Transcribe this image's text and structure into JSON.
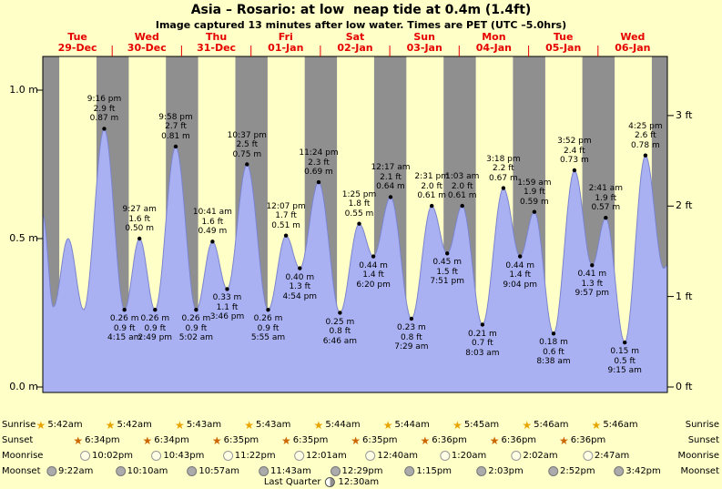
{
  "title": "Asia – Rosario: at low  neap tide at 0.4m (1.4ft)",
  "subtitle": "Image captured 13 minutes after low water. Times are PET (UTC –5.0hrs)",
  "colors": {
    "background": "#ffffc8",
    "day_band": "#ffffc8",
    "night_band": "#8f8f8f",
    "tide_fill": "#a9b1f2",
    "tide_line": "#7b84cf",
    "day_label": "#e60000",
    "annotation": "#000000"
  },
  "chart_data": {
    "type": "area",
    "title": "Asia – Rosario: at low  neap tide at 0.4m (1.4ft)",
    "subtitle": "Image captured 13 minutes after low water. Times are PET (UTC –5.0hrs)",
    "x_unit": "days",
    "num_days": 9,
    "ylim_m": [
      0,
      1.13
    ],
    "y_axis_left": {
      "unit": "m",
      "tick_labels": [
        "1.0 m",
        "0.5 m",
        "0.0 m"
      ],
      "tick_values": [
        1.0,
        0.5,
        0.0
      ]
    },
    "y_axis_right": {
      "unit": "ft",
      "tick_labels": [
        "3 ft",
        "2 ft",
        "1 ft",
        "0 ft"
      ],
      "tick_values": [
        3,
        2,
        1,
        0
      ]
    },
    "days": [
      {
        "dow": "Tue",
        "date": "29-Dec"
      },
      {
        "dow": "Wed",
        "date": "30-Dec"
      },
      {
        "dow": "Thu",
        "date": "31-Dec"
      },
      {
        "dow": "Fri",
        "date": "01-Jan"
      },
      {
        "dow": "Sat",
        "date": "02-Jan"
      },
      {
        "dow": "Sun",
        "date": "03-Jan"
      },
      {
        "dow": "Mon",
        "date": "04-Jan"
      },
      {
        "dow": "Tue",
        "date": "05-Jan"
      },
      {
        "dow": "Wed",
        "date": "06-Jan"
      }
    ],
    "tide_events": [
      {
        "day": 0,
        "time": "9:16 pm",
        "ft": "2.9",
        "m": "0.87",
        "type": "high"
      },
      {
        "day": 1,
        "time": "4:15 am",
        "ft": "0.9",
        "m": "0.26",
        "type": "low"
      },
      {
        "day": 1,
        "time": "9:27 am",
        "ft": "1.6",
        "m": "0.50",
        "type": "high"
      },
      {
        "day": 1,
        "time": "2:49 pm",
        "ft": "0.9",
        "m": "0.26",
        "type": "low"
      },
      {
        "day": 1,
        "time": "9:58 pm",
        "ft": "2.7",
        "m": "0.81",
        "type": "high"
      },
      {
        "day": 2,
        "time": "5:02 am",
        "ft": "0.9",
        "m": "0.26",
        "type": "low"
      },
      {
        "day": 2,
        "time": "10:41 am",
        "ft": "1.6",
        "m": "0.49",
        "type": "high"
      },
      {
        "day": 2,
        "time": "3:46 pm",
        "ft": "1.1",
        "m": "0.33",
        "type": "low"
      },
      {
        "day": 2,
        "time": "10:37 pm",
        "ft": "2.5",
        "m": "0.75",
        "type": "high"
      },
      {
        "day": 3,
        "time": "5:55 am",
        "ft": "0.9",
        "m": "0.26",
        "type": "low"
      },
      {
        "day": 3,
        "time": "12:07 pm",
        "ft": "1.7",
        "m": "0.51",
        "type": "high"
      },
      {
        "day": 3,
        "time": "4:54 pm",
        "ft": "1.3",
        "m": "0.40",
        "type": "low"
      },
      {
        "day": 3,
        "time": "11:24 pm",
        "ft": "2.3",
        "m": "0.69",
        "type": "high"
      },
      {
        "day": 4,
        "time": "6:46 am",
        "ft": "0.8",
        "m": "0.25",
        "type": "low"
      },
      {
        "day": 4,
        "time": "1:25 pm",
        "ft": "1.8",
        "m": "0.55",
        "type": "high"
      },
      {
        "day": 4,
        "time": "6:20 pm",
        "ft": "1.4",
        "m": "0.44",
        "type": "low"
      },
      {
        "day": 5,
        "time": "12:17 am",
        "ft": "2.1",
        "m": "0.64",
        "type": "high"
      },
      {
        "day": 5,
        "time": "7:29 am",
        "ft": "0.8",
        "m": "0.23",
        "type": "low"
      },
      {
        "day": 5,
        "time": "2:31 pm",
        "ft": "2.0",
        "m": "0.61",
        "type": "high"
      },
      {
        "day": 5,
        "time": "7:51 pm",
        "ft": "1.5",
        "m": "0.45",
        "type": "low"
      },
      {
        "day": 6,
        "time": "1:03 am",
        "ft": "2.0",
        "m": "0.61",
        "type": "high"
      },
      {
        "day": 6,
        "time": "8:03 am",
        "ft": "0.7",
        "m": "0.21",
        "type": "low"
      },
      {
        "day": 6,
        "time": "3:18 pm",
        "ft": "2.2",
        "m": "0.67",
        "type": "high"
      },
      {
        "day": 6,
        "time": "9:04 pm",
        "ft": "1.4",
        "m": "0.44",
        "type": "low"
      },
      {
        "day": 7,
        "time": "1:59 am",
        "ft": "1.9",
        "m": "0.59",
        "type": "high"
      },
      {
        "day": 7,
        "time": "8:38 am",
        "ft": "0.6",
        "m": "0.18",
        "type": "low"
      },
      {
        "day": 7,
        "time": "3:52 pm",
        "ft": "2.4",
        "m": "0.73",
        "type": "high"
      },
      {
        "day": 7,
        "time": "9:57 pm",
        "ft": "1.3",
        "m": "0.41",
        "type": "low"
      },
      {
        "day": 8,
        "time": "2:41 am",
        "ft": "1.9",
        "m": "0.57",
        "type": "high"
      },
      {
        "day": 8,
        "time": "9:15 am",
        "ft": "0.5",
        "m": "0.15",
        "type": "low"
      },
      {
        "day": 8,
        "time": "4:25 pm",
        "ft": "2.6",
        "m": "0.78",
        "type": "high"
      }
    ],
    "edge_points": [
      {
        "day": 0,
        "time": "12:00 am",
        "m": 0.58
      },
      {
        "day": 0,
        "time": "3:40 am",
        "m": 0.27
      },
      {
        "day": 0,
        "time": "8:45 am",
        "m": 0.5
      },
      {
        "day": 0,
        "time": "2:10 pm",
        "m": 0.26
      },
      {
        "day": 8,
        "time": "10:45 pm",
        "m": 0.4
      },
      {
        "day": 8,
        "time": "11:59 pm",
        "m": 0.41
      }
    ]
  },
  "astro": {
    "sunrise": {
      "label": "Sunrise",
      "entries": [
        {
          "day": 0,
          "time": "5:42am"
        },
        {
          "day": 1,
          "time": "5:42am"
        },
        {
          "day": 2,
          "time": "5:43am"
        },
        {
          "day": 3,
          "time": "5:43am"
        },
        {
          "day": 4,
          "time": "5:44am"
        },
        {
          "day": 5,
          "time": "5:44am"
        },
        {
          "day": 6,
          "time": "5:45am"
        },
        {
          "day": 7,
          "time": "5:46am"
        },
        {
          "day": 8,
          "time": "5:46am"
        }
      ]
    },
    "sunset": {
      "label": "Sunset",
      "entries": [
        {
          "day": 0,
          "time": "6:34pm"
        },
        {
          "day": 1,
          "time": "6:34pm"
        },
        {
          "day": 2,
          "time": "6:35pm"
        },
        {
          "day": 3,
          "time": "6:35pm"
        },
        {
          "day": 4,
          "time": "6:35pm"
        },
        {
          "day": 5,
          "time": "6:36pm"
        },
        {
          "day": 6,
          "time": "6:36pm"
        },
        {
          "day": 7,
          "time": "6:36pm"
        }
      ]
    },
    "moonrise": {
      "label": "Moonrise",
      "entries": [
        {
          "day": 0,
          "time": "10:02pm"
        },
        {
          "day": 1,
          "time": "10:43pm"
        },
        {
          "day": 2,
          "time": "11:22pm"
        },
        {
          "day": 4,
          "time": "12:01am"
        },
        {
          "day": 5,
          "time": "12:40am"
        },
        {
          "day": 6,
          "time": "1:20am"
        },
        {
          "day": 7,
          "time": "2:02am"
        },
        {
          "day": 8,
          "time": "2:47am"
        }
      ]
    },
    "moonset": {
      "label": "Moonset",
      "entries": [
        {
          "day": 0,
          "time": "9:22am"
        },
        {
          "day": 1,
          "time": "10:10am"
        },
        {
          "day": 2,
          "time": "10:57am"
        },
        {
          "day": 3,
          "time": "11:43am"
        },
        {
          "day": 4,
          "time": "12:29pm"
        },
        {
          "day": 5,
          "time": "1:15pm"
        },
        {
          "day": 6,
          "time": "2:03pm"
        },
        {
          "day": 7,
          "time": "2:52pm"
        },
        {
          "day": 8,
          "time": "3:42pm"
        }
      ]
    }
  },
  "footer": {
    "last_quarter_label": "Last Quarter",
    "last_quarter_time": "12:30am",
    "day": 4
  }
}
